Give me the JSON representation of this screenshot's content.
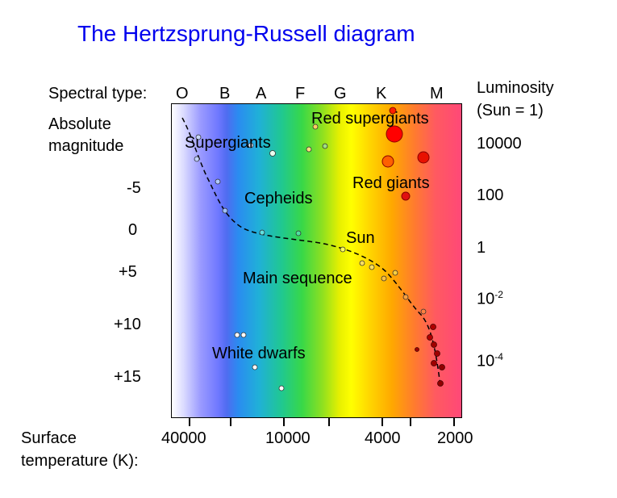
{
  "title": "The Hertzsprung-Russell diagram",
  "spectral": {
    "label": "Spectral type:",
    "types": [
      "O",
      "B",
      "A",
      "F",
      "G",
      "K",
      "M"
    ]
  },
  "abs_mag": {
    "label_line1": "Absolute",
    "label_line2": "magnitude",
    "ticks": [
      "-5",
      "0",
      "+5",
      "+10",
      "+15"
    ]
  },
  "luminosity": {
    "label_line1": "Luminosity",
    "label_line2": "(Sun = 1)",
    "ticks": [
      "10000",
      "100",
      "1"
    ],
    "tick_exp": [
      {
        "base": "10",
        "exp": "-2"
      },
      {
        "base": "10",
        "exp": "-4"
      }
    ]
  },
  "temperature": {
    "label_line1": "Surface",
    "label_line2": "temperature (K):",
    "ticks": [
      "40000",
      "10000",
      "4000",
      "2000"
    ]
  },
  "regions": {
    "red_supergiants": "Red supergiants",
    "supergiants": "Supergiants",
    "red_giants": "Red giants",
    "cepheids": "Cepheids",
    "sun": "Sun",
    "main_sequence": "Main sequence",
    "white_dwarfs": "White dwarfs"
  },
  "colors": {
    "title": "#0000ee",
    "main_sequence_line": "#000000"
  },
  "stars_legend_note": "",
  "stars": [
    {
      "group": "supergiants",
      "color": "#c8d8ff"
    },
    {
      "group": "supergiants",
      "color": "#d8e0ff"
    },
    {
      "group": "supergiants",
      "color": "#d8f0ff"
    },
    {
      "group": "supergiants",
      "color": "#e8fff0"
    },
    {
      "group": "supergiants",
      "color": "#ffe080"
    },
    {
      "group": "supergiants",
      "color": "#a0e080"
    },
    {
      "group": "red_supergiants",
      "color": "#ff0000"
    },
    {
      "group": "red_supergiants",
      "color": "#ff3010"
    },
    {
      "group": "red_supergiants",
      "color": "#ff6000"
    },
    {
      "group": "red_supergiants",
      "color": "#ff2000"
    },
    {
      "group": "red_giants",
      "color": "#e01010"
    },
    {
      "group": "white_dwarfs",
      "color": "#ffffff"
    },
    {
      "group": "white_dwarfs",
      "color": "#ffffff"
    },
    {
      "group": "white_dwarfs",
      "color": "#ffffff"
    },
    {
      "group": "white_dwarfs",
      "color": "#ffffff"
    }
  ]
}
